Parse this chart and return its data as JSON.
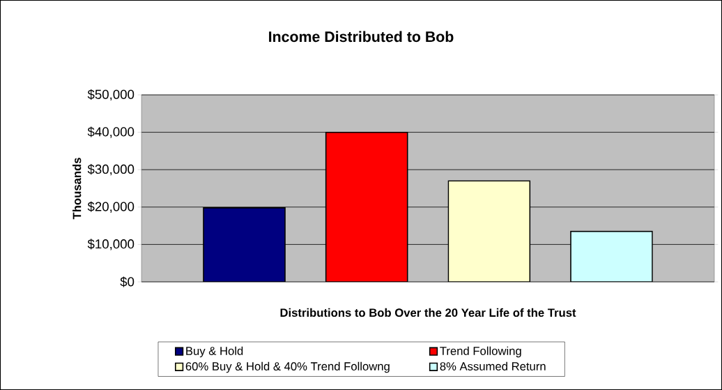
{
  "chart_data": {
    "type": "bar",
    "title": "Income Distributed to Bob",
    "xlabel": "Distributions to Bob Over the 20 Year Life of the Trust",
    "ylabel": "Thousands",
    "categories": [
      null
    ],
    "series": [
      {
        "name": "Buy & Hold",
        "color": "#000080",
        "values": [
          19800
        ]
      },
      {
        "name": "Trend Following",
        "color": "#ff0000",
        "values": [
          40000
        ]
      },
      {
        "name": "60% Buy & Hold & 40% Trend Followng",
        "color": "#ffffcc",
        "values": [
          27000
        ]
      },
      {
        "name": "8% Assumed Return",
        "color": "#ccffff",
        "values": [
          13500
        ]
      }
    ],
    "ylim": [
      0,
      50000
    ],
    "yticks": [
      {
        "value": 0,
        "label": "$0"
      },
      {
        "value": 10000,
        "label": "$10,000"
      },
      {
        "value": 20000,
        "label": "$20,000"
      },
      {
        "value": 30000,
        "label": "$30,000"
      },
      {
        "value": 40000,
        "label": "$40,000"
      },
      {
        "value": 50000,
        "label": "$50,000"
      }
    ],
    "grid": "y",
    "legend": "bottom"
  }
}
